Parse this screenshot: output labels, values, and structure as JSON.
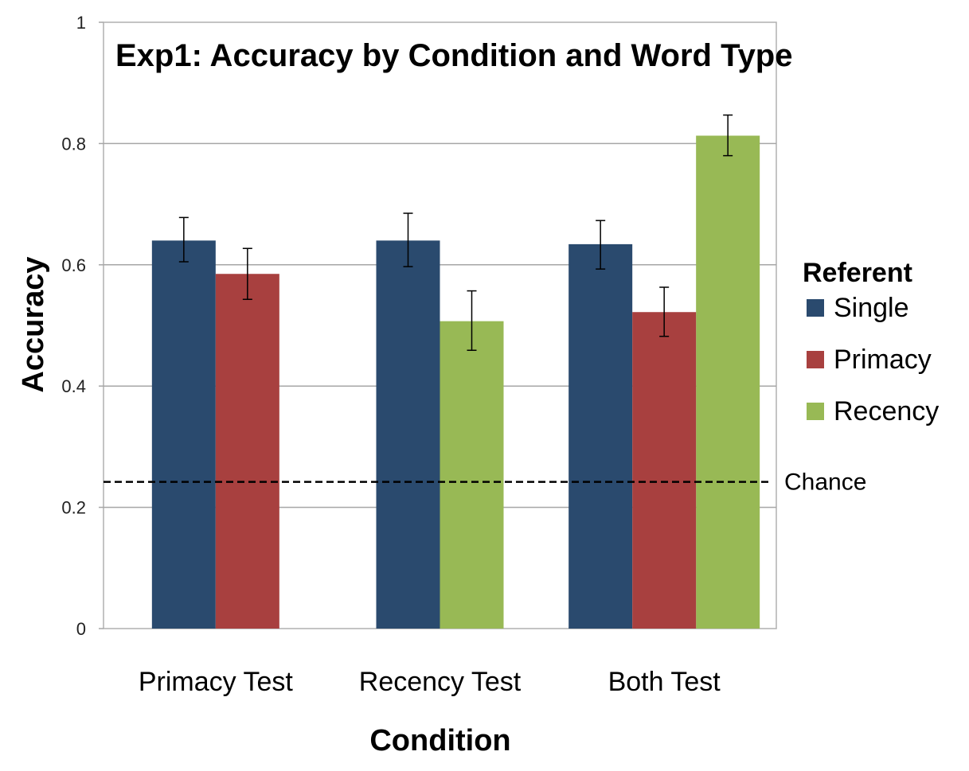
{
  "chart_data": {
    "type": "bar",
    "title": "Exp1: Accuracy by Condition and Word Type",
    "xlabel": "Condition",
    "ylabel": "Accuracy",
    "ylim": [
      0,
      1
    ],
    "yticks": [
      0,
      0.2,
      0.4,
      0.6,
      0.8,
      1
    ],
    "ytick_labels": [
      "0",
      "0.2",
      "0.4",
      "0.6",
      "0.8",
      "1"
    ],
    "grid": true,
    "legend_title": "Referent",
    "legend_position": "right",
    "categories": [
      "Primacy Test",
      "Recency Test",
      "Both Test"
    ],
    "series": [
      {
        "name": "Single",
        "color": "#2A4A6E",
        "bars": [
          {
            "category": "Primacy Test",
            "value": 0.64,
            "err_low": 0.605,
            "err_high": 0.678
          },
          {
            "category": "Recency Test",
            "value": 0.64,
            "err_low": 0.597,
            "err_high": 0.685
          },
          {
            "category": "Both Test",
            "value": 0.634,
            "err_low": 0.593,
            "err_high": 0.673
          }
        ]
      },
      {
        "name": "Primacy",
        "color": "#A8403F",
        "bars": [
          {
            "category": "Primacy Test",
            "value": 0.585,
            "err_low": 0.543,
            "err_high": 0.627
          },
          {
            "category": "Both Test",
            "value": 0.522,
            "err_low": 0.482,
            "err_high": 0.563
          }
        ]
      },
      {
        "name": "Recency",
        "color": "#98B955",
        "bars": [
          {
            "category": "Recency Test",
            "value": 0.507,
            "err_low": 0.459,
            "err_high": 0.557
          },
          {
            "category": "Both Test",
            "value": 0.813,
            "err_low": 0.78,
            "err_high": 0.847
          }
        ]
      }
    ],
    "reference_line": {
      "label": "Chance",
      "value": 0.242,
      "style": "dashed"
    }
  }
}
